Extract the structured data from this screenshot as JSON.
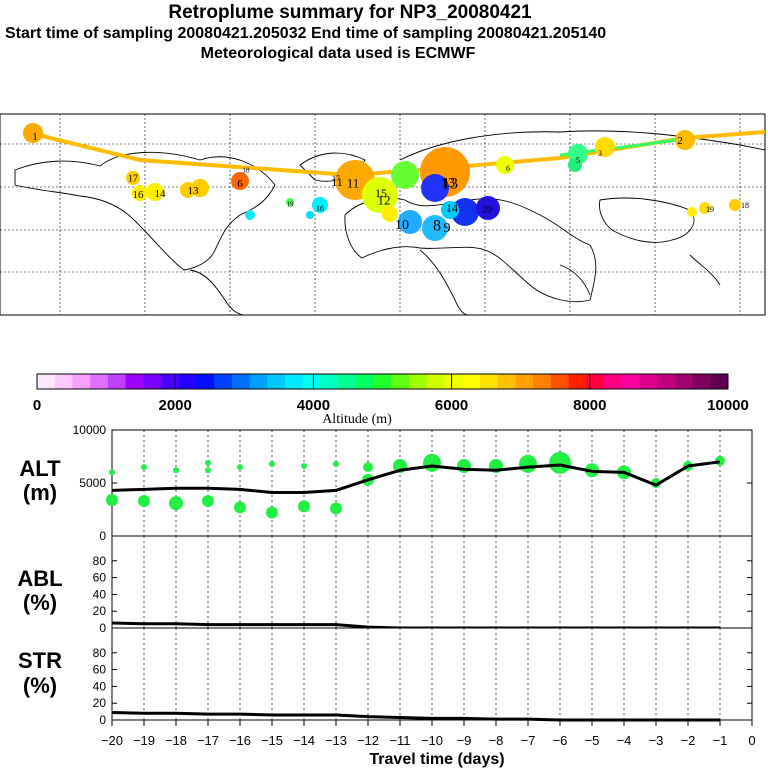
{
  "header": {
    "title": "Retroplume summary for NP3_20080421",
    "sampling": "Start time of sampling 20080421.205032     End time of sampling 20080421.205140",
    "met": "Meteorological data used is ECMWF"
  },
  "colorbar": {
    "tick_labels": [
      "0",
      "2000",
      "4000",
      "6000",
      "8000",
      "10000"
    ],
    "label": "Altitude (m)",
    "colors": [
      "#ffe6ff",
      "#ffc8ff",
      "#f5a0ff",
      "#e070ff",
      "#c040ff",
      "#a000ff",
      "#7a00ff",
      "#4c00ff",
      "#2400ff",
      "#0010ff",
      "#0040ff",
      "#0070ff",
      "#00a0ff",
      "#00c8ff",
      "#00e8ff",
      "#00ffee",
      "#00ffc0",
      "#00ff90",
      "#00ff60",
      "#20ff30",
      "#60ff10",
      "#a0ff00",
      "#d0ff00",
      "#f0ff00",
      "#ffff00",
      "#ffe000",
      "#ffc000",
      "#ffa000",
      "#ff8000",
      "#ff5000",
      "#ff2000",
      "#ff0040",
      "#ff0080",
      "#ff00a0",
      "#e00090",
      "#c00080",
      "#a00070",
      "#800060",
      "#600050"
    ]
  },
  "map": {
    "labels": [
      "1",
      "2",
      "3",
      "4",
      "5",
      "6",
      "7",
      "8",
      "9",
      "10",
      "11",
      "12",
      "13",
      "14",
      "15",
      "16",
      "17",
      "18",
      "19",
      "20"
    ]
  },
  "chart_data": [
    {
      "type": "line",
      "panel": "ALT",
      "ylabel": "ALT\n(m)",
      "ylim": [
        0,
        10000
      ],
      "yticks": [
        "10000",
        "5000",
        "0"
      ],
      "x": [
        -20,
        -19,
        -18,
        -17,
        -16,
        -15,
        -14,
        -13,
        -12,
        -11,
        -10,
        -9,
        -8,
        -7,
        -6,
        -5,
        -4,
        -3,
        -2,
        -1
      ],
      "values": [
        4300,
        4400,
        4500,
        4500,
        4400,
        4100,
        4100,
        4300,
        5300,
        6200,
        6600,
        6300,
        6200,
        6500,
        6700,
        6100,
        6000,
        4800,
        6600,
        7000
      ],
      "scatter": [
        {
          "x": -20,
          "y": 6000,
          "s": 3
        },
        {
          "x": -20,
          "y": 3400,
          "s": 6
        },
        {
          "x": -19,
          "y": 6500,
          "s": 3
        },
        {
          "x": -19,
          "y": 3300,
          "s": 6
        },
        {
          "x": -18,
          "y": 6200,
          "s": 3
        },
        {
          "x": -18,
          "y": 3100,
          "s": 7
        },
        {
          "x": -17,
          "y": 6900,
          "s": 3
        },
        {
          "x": -17,
          "y": 6200,
          "s": 3
        },
        {
          "x": -17,
          "y": 3300,
          "s": 6
        },
        {
          "x": -16,
          "y": 6500,
          "s": 3
        },
        {
          "x": -16,
          "y": 2700,
          "s": 6
        },
        {
          "x": -15,
          "y": 6800,
          "s": 3
        },
        {
          "x": -15,
          "y": 2200,
          "s": 6
        },
        {
          "x": -14,
          "y": 6600,
          "s": 3
        },
        {
          "x": -14,
          "y": 2800,
          "s": 6
        },
        {
          "x": -13,
          "y": 6800,
          "s": 3
        },
        {
          "x": -13,
          "y": 2600,
          "s": 6
        },
        {
          "x": -12,
          "y": 6500,
          "s": 5
        },
        {
          "x": -12,
          "y": 5300,
          "s": 6
        },
        {
          "x": -11,
          "y": 6600,
          "s": 7
        },
        {
          "x": -10,
          "y": 6900,
          "s": 9
        },
        {
          "x": -9,
          "y": 6600,
          "s": 7
        },
        {
          "x": -8,
          "y": 6600,
          "s": 7
        },
        {
          "x": -7,
          "y": 6800,
          "s": 9
        },
        {
          "x": -6,
          "y": 6900,
          "s": 11
        },
        {
          "x": -5,
          "y": 6200,
          "s": 7
        },
        {
          "x": -4,
          "y": 6000,
          "s": 7
        },
        {
          "x": -3,
          "y": 5000,
          "s": 5
        },
        {
          "x": -2,
          "y": 6600,
          "s": 5
        },
        {
          "x": -1,
          "y": 7100,
          "s": 5
        }
      ]
    },
    {
      "type": "line",
      "panel": "ABL",
      "ylabel": "ABL\n(%)",
      "ylim": [
        0,
        100
      ],
      "yticks": [
        "80",
        "60",
        "40",
        "20",
        "0"
      ],
      "x": [
        -20,
        -19,
        -18,
        -17,
        -16,
        -15,
        -14,
        -13,
        -12,
        -11,
        -10,
        -9,
        -8,
        -7,
        -6,
        -5,
        -4,
        -3,
        -2,
        -1
      ],
      "values": [
        6,
        5,
        5,
        4,
        4,
        4,
        4,
        4,
        1,
        0,
        0,
        0,
        0,
        0,
        0,
        0,
        0,
        0,
        0,
        0
      ]
    },
    {
      "type": "line",
      "panel": "STR",
      "ylabel": "STR\n(%)",
      "ylim": [
        0,
        100
      ],
      "yticks": [
        "80",
        "60",
        "40",
        "20",
        "0"
      ],
      "x": [
        -20,
        -19,
        -18,
        -17,
        -16,
        -15,
        -14,
        -13,
        -12,
        -11,
        -10,
        -9,
        -8,
        -7,
        -6,
        -5,
        -4,
        -3,
        -2,
        -1
      ],
      "values": [
        9,
        8,
        8,
        7,
        7,
        6,
        6,
        6,
        4,
        3,
        2,
        2,
        1,
        1,
        0,
        0,
        0,
        0,
        0,
        0
      ]
    }
  ],
  "xaxis": {
    "tick_labels": [
      "−20",
      "−19",
      "−18",
      "−17",
      "−16",
      "−15",
      "−14",
      "−13",
      "−12",
      "−11",
      "−10",
      "−9",
      "−8",
      "−7",
      "−6",
      "−5",
      "−4",
      "−3",
      "−2",
      "−1",
      "0"
    ],
    "label": "Travel time (days)"
  }
}
